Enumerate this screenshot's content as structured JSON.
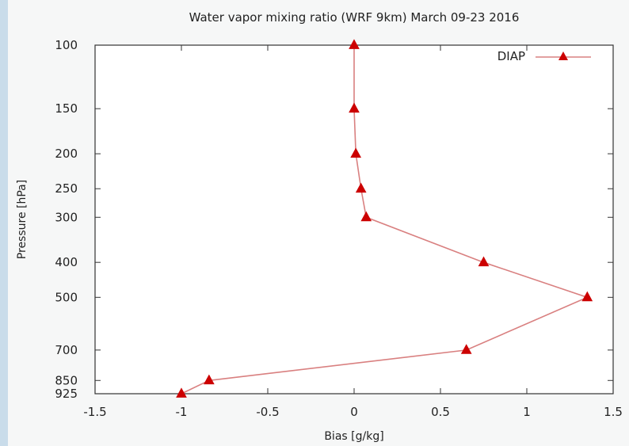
{
  "chart_data": {
    "type": "line",
    "title": "Water vapor mixing ratio (WRF 9km) March 09-23 2016",
    "xlabel": "Bias [g/kg]",
    "ylabel": "Pressure [hPa]",
    "xlim": [
      -1.5,
      1.5
    ],
    "ylim": [
      100,
      925
    ],
    "y_scale": "log",
    "y_inverted": true,
    "x_ticks": [
      "-1.5",
      "-1",
      "-0.5",
      "0",
      "0.5",
      "1",
      "1.5"
    ],
    "x_tick_values": [
      -1.5,
      -1,
      -0.5,
      0,
      0.5,
      1,
      1.5
    ],
    "y_ticks": [
      "100",
      "150",
      "200",
      "250",
      "300",
      "400",
      "500",
      "700",
      "850",
      "925"
    ],
    "y_tick_values": [
      100,
      150,
      200,
      250,
      300,
      400,
      500,
      700,
      850,
      925
    ],
    "legend_position": "top-right",
    "series": [
      {
        "name": "DIAP",
        "color": "#cc0000",
        "line_color": "#d98080",
        "marker": "triangle",
        "x": [
          0.0,
          0.0,
          0.01,
          0.04,
          0.07,
          0.75,
          1.35,
          0.65,
          -0.84,
          -1.0
        ],
        "y": [
          100,
          150,
          200,
          250,
          300,
          400,
          500,
          700,
          850,
          925
        ]
      }
    ]
  }
}
